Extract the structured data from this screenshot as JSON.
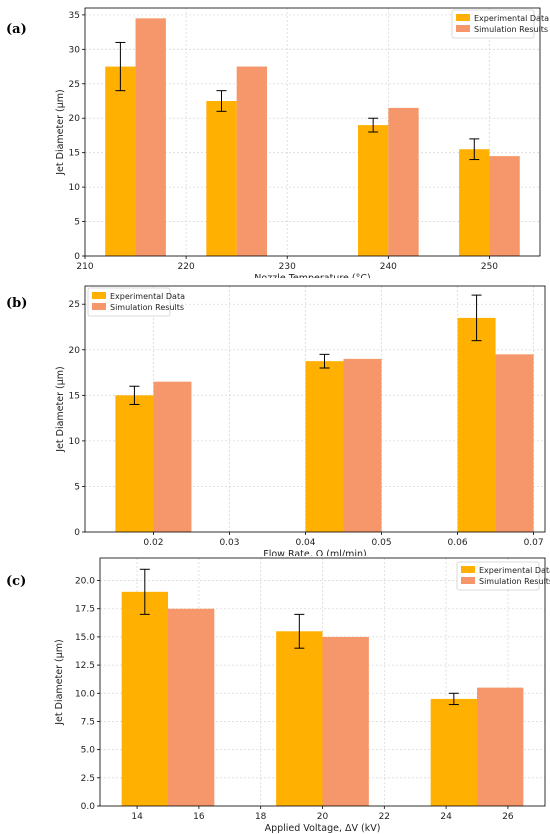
{
  "colors": {
    "experimental": "#FFB000",
    "simulation": "#F5976A",
    "grid": "#d9d9d9",
    "axis": "#000000"
  },
  "chart_data": [
    {
      "panel": "(a)",
      "type": "bar",
      "xlabel": "Nozzle Temperature (°C)",
      "ylabel": "Jet Diameter (μm)",
      "xlim": [
        210,
        255
      ],
      "ylim": [
        0,
        36
      ],
      "xticks": [
        210,
        220,
        230,
        240,
        250
      ],
      "yticks": [
        0,
        5,
        10,
        15,
        20,
        25,
        30,
        35
      ],
      "xtick_labels": [
        "210",
        "220",
        "230",
        "240",
        "250"
      ],
      "ytick_labels": [
        "0",
        "5",
        "10",
        "15",
        "20",
        "25",
        "30",
        "35"
      ],
      "bar_width": 3,
      "x": [
        215,
        225,
        240,
        250
      ],
      "legend_position": "top-right",
      "grid": true,
      "series": [
        {
          "name": "Experimental Data",
          "offset": -1.5,
          "values": [
            27.5,
            22.5,
            19,
            15.5
          ],
          "error": [
            3.5,
            1.5,
            1,
            1.5
          ]
        },
        {
          "name": "Simulation Results",
          "offset": 1.5,
          "values": [
            34.5,
            27.5,
            21.5,
            14.5
          ]
        }
      ]
    },
    {
      "panel": "(b)",
      "type": "bar",
      "xlabel": "Flow Rate, Q (ml/min)",
      "ylabel": "Jet Diameter (μm)",
      "xlim": [
        0.011,
        0.0715
      ],
      "ylim": [
        0,
        27
      ],
      "xticks": [
        0.02,
        0.03,
        0.04,
        0.05,
        0.06,
        0.07
      ],
      "yticks": [
        0,
        5,
        10,
        15,
        20,
        25
      ],
      "xtick_labels": [
        "0.02",
        "0.03",
        "0.04",
        "0.05",
        "0.06",
        "0.07"
      ],
      "ytick_labels": [
        "0",
        "5",
        "10",
        "15",
        "20",
        "25"
      ],
      "bar_width": 0.005,
      "x": [
        0.02,
        0.045,
        0.065
      ],
      "legend_position": "top-left",
      "grid": true,
      "series": [
        {
          "name": "Experimental Data",
          "offset": -0.0025,
          "values": [
            15,
            18.75,
            23.5
          ],
          "error": [
            1,
            0.75,
            2.5
          ]
        },
        {
          "name": "Simulation Results",
          "offset": 0.0025,
          "values": [
            16.5,
            19,
            19.5
          ]
        }
      ]
    },
    {
      "panel": "(c)",
      "type": "bar",
      "xlabel": "Applied Voltage, ΔV (kV)",
      "ylabel": "Jet Diameter (μm)",
      "xlim": [
        12.8,
        27.2
      ],
      "ylim": [
        0,
        22
      ],
      "xticks": [
        14,
        16,
        18,
        20,
        22,
        24,
        26
      ],
      "yticks": [
        0,
        2.5,
        5,
        7.5,
        10,
        12.5,
        15,
        17.5,
        20
      ],
      "xtick_labels": [
        "14",
        "16",
        "18",
        "20",
        "22",
        "24",
        "26"
      ],
      "ytick_labels": [
        "0.0",
        "2.5",
        "5.0",
        "7.5",
        "10.0",
        "12.5",
        "15.0",
        "17.5",
        "20.0"
      ],
      "bar_width": 1.5,
      "x": [
        15,
        20,
        25
      ],
      "legend_position": "top-right",
      "grid": true,
      "series": [
        {
          "name": "Experimental Data",
          "offset": -0.75,
          "values": [
            19,
            15.5,
            9.5
          ],
          "error": [
            2,
            1.5,
            0.5
          ]
        },
        {
          "name": "Simulation Results",
          "offset": 0.75,
          "values": [
            17.5,
            15,
            10.5
          ]
        }
      ]
    }
  ]
}
